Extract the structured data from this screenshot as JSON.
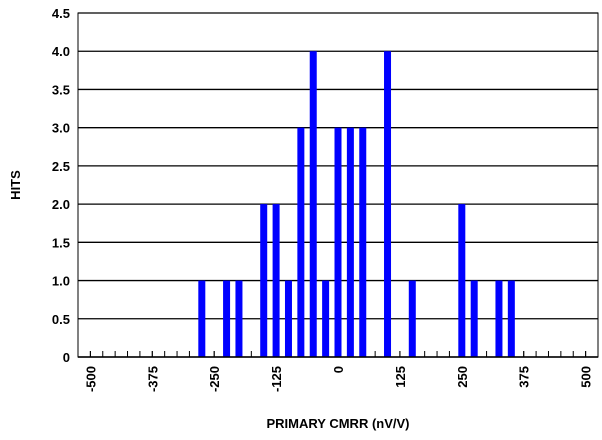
{
  "chart_data": {
    "type": "bar",
    "x_label": "PRIMARY CMRR (nV/V)",
    "y_label": "HITS",
    "x": [
      -275,
      -225,
      -200,
      -150,
      -125,
      -100,
      -75,
      -50,
      -25,
      0,
      25,
      50,
      100,
      150,
      250,
      275,
      325,
      350
    ],
    "values": [
      1,
      1,
      1,
      2,
      2,
      1,
      3,
      4,
      1,
      3,
      3,
      3,
      4,
      1,
      2,
      1,
      1,
      1
    ],
    "color": "#0000ff",
    "xlim": [
      -525,
      525
    ],
    "xticks": [
      -500,
      -375,
      -250,
      -125,
      0,
      125,
      250,
      375,
      500
    ],
    "xminorticks": [
      -500,
      -475,
      -450,
      -425,
      -400,
      -375,
      -350,
      -325,
      -300,
      -275,
      -250,
      -225,
      -200,
      -175,
      -150,
      -125,
      -100,
      -75,
      -50,
      -25,
      0,
      25,
      50,
      75,
      100,
      125,
      150,
      175,
      200,
      225,
      250,
      275,
      300,
      325,
      350,
      375,
      400,
      425,
      450,
      475,
      500
    ],
    "ylim": [
      0,
      4.5
    ],
    "yticks": [
      0,
      {
        "value": 0.5,
        "label": "0.5"
      },
      {
        "value": 1,
        "label": "1.0"
      },
      {
        "value": 1.5,
        "label": "1.5"
      },
      {
        "value": 2,
        "label": "2.0"
      },
      {
        "value": 2.5,
        "label": "2.5"
      },
      {
        "value": 3,
        "label": "3.0"
      },
      {
        "value": 3.5,
        "label": "3.5"
      },
      {
        "value": 4,
        "label": "4.0"
      },
      {
        "value": 4.5,
        "label": "4.5"
      }
    ],
    "grid": true
  }
}
